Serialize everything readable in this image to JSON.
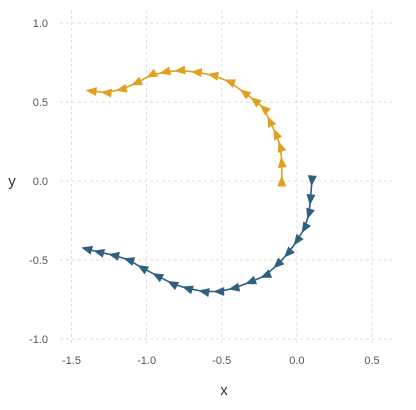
{
  "chart_data": {
    "type": "line",
    "title": "",
    "xlabel": "x",
    "ylabel": "y",
    "xlim": [
      -1.55,
      0.58
    ],
    "ylim": [
      -1.02,
      1.02
    ],
    "x_ticks": [
      -1.5,
      -1.0,
      -0.5,
      0.0,
      0.5
    ],
    "x_tick_labels": [
      "-1.5",
      "-1.0",
      "-0.5",
      "0.0",
      "0.5"
    ],
    "y_ticks": [
      -1.0,
      -0.5,
      0.0,
      0.5,
      1.0
    ],
    "y_tick_labels": [
      "-1.0",
      "-0.5",
      "0.0",
      "0.5",
      "1.0"
    ],
    "grid": true,
    "grid_style": "dashed",
    "markers": "triangle arrows pointing along direction of travel",
    "series": [
      {
        "color": "#e0a020",
        "points": [
          [
            -0.1,
            0.0
          ],
          [
            -0.1,
            0.12
          ],
          [
            -0.11,
            0.22
          ],
          [
            -0.14,
            0.3
          ],
          [
            -0.18,
            0.38
          ],
          [
            -0.22,
            0.46
          ],
          [
            -0.28,
            0.51
          ],
          [
            -0.35,
            0.56
          ],
          [
            -0.45,
            0.63
          ],
          [
            -0.56,
            0.67
          ],
          [
            -0.67,
            0.69
          ],
          [
            -0.78,
            0.7
          ],
          [
            -0.88,
            0.69
          ],
          [
            -0.97,
            0.67
          ],
          [
            -1.07,
            0.62
          ],
          [
            -1.17,
            0.58
          ],
          [
            -1.27,
            0.56
          ],
          [
            -1.37,
            0.57
          ]
        ]
      },
      {
        "color": "#2f6080",
        "points": [
          [
            0.1,
            0.0
          ],
          [
            0.09,
            -0.12
          ],
          [
            0.08,
            -0.21
          ],
          [
            0.05,
            -0.3
          ],
          [
            0.0,
            -0.38
          ],
          [
            -0.06,
            -0.46
          ],
          [
            -0.13,
            -0.53
          ],
          [
            -0.21,
            -0.6
          ],
          [
            -0.31,
            -0.64
          ],
          [
            -0.42,
            -0.68
          ],
          [
            -0.52,
            -0.7
          ],
          [
            -0.62,
            -0.7
          ],
          [
            -0.73,
            -0.68
          ],
          [
            -0.83,
            -0.65
          ],
          [
            -0.93,
            -0.6
          ],
          [
            -1.03,
            -0.55
          ],
          [
            -1.12,
            -0.5
          ],
          [
            -1.22,
            -0.47
          ],
          [
            -1.32,
            -0.45
          ],
          [
            -1.4,
            -0.43
          ]
        ]
      }
    ]
  }
}
